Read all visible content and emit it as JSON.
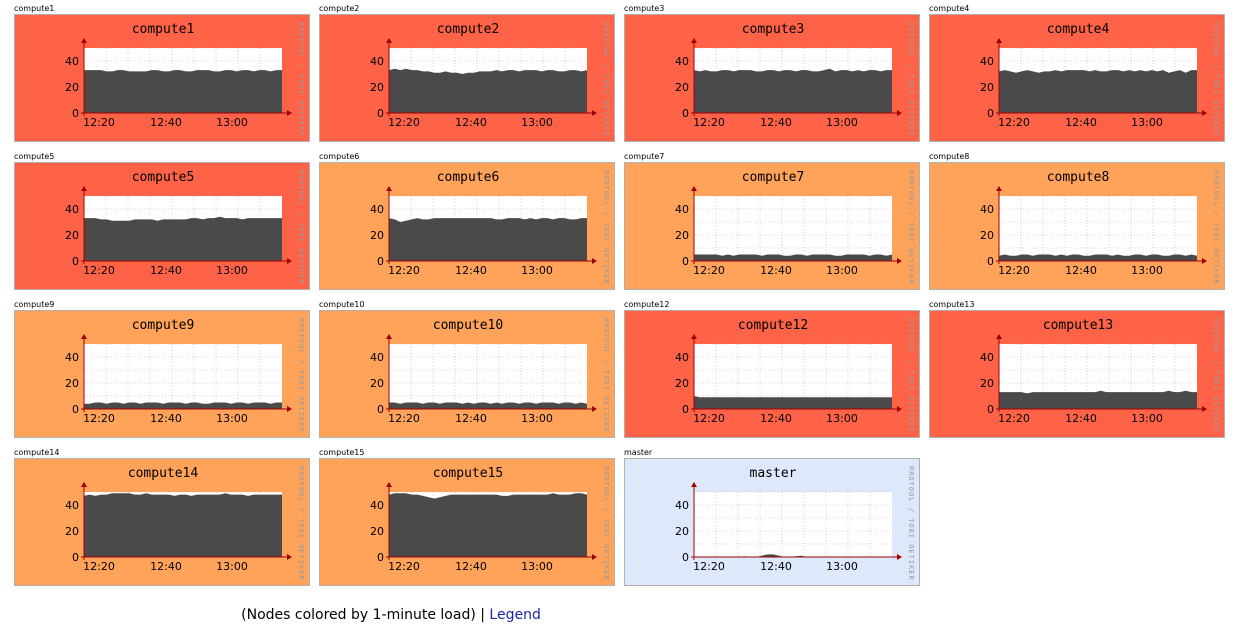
{
  "colors": {
    "high": "#ff6347",
    "medium": "#ffa35a",
    "idle": "#dde8fb",
    "area": "#4a4a4a",
    "axis": "#a00000",
    "grid": "#e8a0a0"
  },
  "watermark": "RRDTOOL / TOBI OETIKER",
  "footer": {
    "text": "(Nodes colored by 1-minute load) |",
    "link": "Legend"
  },
  "chart_data": [
    {
      "type": "area",
      "node": "compute1",
      "title": "compute1",
      "load": "high",
      "xticks": [
        "12:20",
        "12:40",
        "13:00"
      ],
      "yticks": [
        0,
        20,
        40
      ],
      "ylim": [
        0,
        50
      ],
      "values": [
        33,
        33,
        33,
        33,
        32,
        32,
        33,
        33,
        32,
        32,
        32,
        32,
        33,
        33,
        32,
        32,
        33,
        33,
        32,
        32,
        33,
        33,
        33,
        32,
        32,
        33,
        33,
        32,
        33,
        33,
        32,
        33,
        33,
        32,
        33,
        33
      ]
    },
    {
      "type": "area",
      "node": "compute2",
      "title": "compute2",
      "load": "high",
      "xticks": [
        "12:20",
        "12:40",
        "13:00"
      ],
      "yticks": [
        0,
        20,
        40
      ],
      "ylim": [
        0,
        50
      ],
      "values": [
        33,
        34,
        33,
        34,
        33,
        33,
        32,
        32,
        31,
        31,
        32,
        31,
        31,
        30,
        31,
        31,
        32,
        32,
        32,
        33,
        32,
        33,
        33,
        32,
        33,
        33,
        33,
        32,
        33,
        33,
        32,
        32,
        33,
        33,
        32,
        33
      ]
    },
    {
      "type": "area",
      "node": "compute3",
      "title": "compute3",
      "load": "high",
      "xticks": [
        "12:20",
        "12:40",
        "13:00"
      ],
      "yticks": [
        0,
        20,
        40
      ],
      "ylim": [
        0,
        50
      ],
      "values": [
        33,
        32,
        33,
        32,
        32,
        33,
        33,
        32,
        33,
        33,
        33,
        32,
        32,
        33,
        33,
        32,
        33,
        33,
        32,
        33,
        33,
        32,
        32,
        33,
        34,
        32,
        33,
        33,
        32,
        33,
        32,
        33,
        33,
        32,
        33,
        33
      ]
    },
    {
      "type": "area",
      "node": "compute4",
      "title": "compute4",
      "load": "high",
      "xticks": [
        "12:20",
        "12:40",
        "13:00"
      ],
      "yticks": [
        0,
        20,
        40
      ],
      "ylim": [
        0,
        50
      ],
      "values": [
        32,
        33,
        32,
        31,
        32,
        33,
        32,
        31,
        32,
        32,
        33,
        32,
        33,
        33,
        33,
        33,
        32,
        33,
        32,
        32,
        33,
        33,
        32,
        33,
        32,
        33,
        32,
        33,
        32,
        33,
        31,
        32,
        33,
        31,
        33,
        33
      ]
    },
    {
      "type": "area",
      "node": "compute5",
      "title": "compute5",
      "load": "high",
      "xticks": [
        "12:20",
        "12:40",
        "13:00"
      ],
      "yticks": [
        0,
        20,
        40
      ],
      "ylim": [
        0,
        50
      ],
      "values": [
        33,
        33,
        33,
        32,
        32,
        31,
        31,
        31,
        31,
        32,
        32,
        32,
        32,
        31,
        32,
        32,
        32,
        32,
        32,
        33,
        33,
        32,
        33,
        33,
        34,
        33,
        33,
        33,
        32,
        33,
        33,
        33,
        33,
        33,
        33,
        33
      ]
    },
    {
      "type": "area",
      "node": "compute6",
      "title": "compute6",
      "load": "medium",
      "xticks": [
        "12:20",
        "12:40",
        "13:00"
      ],
      "yticks": [
        0,
        20,
        40
      ],
      "ylim": [
        0,
        50
      ],
      "values": [
        33,
        32,
        30,
        31,
        32,
        33,
        32,
        32,
        33,
        33,
        33,
        33,
        33,
        33,
        33,
        33,
        33,
        33,
        33,
        32,
        32,
        33,
        33,
        33,
        32,
        33,
        32,
        33,
        33,
        32,
        33,
        33,
        32,
        32,
        33,
        33
      ]
    },
    {
      "type": "area",
      "node": "compute7",
      "title": "compute7",
      "load": "medium",
      "xticks": [
        "12:20",
        "12:40",
        "13:00"
      ],
      "yticks": [
        0,
        20,
        40
      ],
      "ylim": [
        0,
        50
      ],
      "values": [
        5,
        5,
        5,
        5,
        5,
        4,
        5,
        4,
        5,
        5,
        5,
        5,
        4,
        5,
        5,
        5,
        4,
        4,
        5,
        5,
        4,
        5,
        5,
        5,
        5,
        4,
        4,
        5,
        5,
        5,
        5,
        4,
        5,
        5,
        4,
        5
      ]
    },
    {
      "type": "area",
      "node": "compute8",
      "title": "compute8",
      "load": "medium",
      "xticks": [
        "12:20",
        "12:40",
        "13:00"
      ],
      "yticks": [
        0,
        20,
        40
      ],
      "ylim": [
        0,
        50
      ],
      "values": [
        4,
        5,
        4,
        4,
        5,
        5,
        4,
        5,
        5,
        5,
        4,
        5,
        4,
        5,
        5,
        4,
        4,
        5,
        5,
        5,
        4,
        5,
        4,
        4,
        5,
        5,
        4,
        5,
        5,
        4,
        4,
        5,
        5,
        4,
        5,
        4
      ]
    },
    {
      "type": "area",
      "node": "compute9",
      "title": "compute9",
      "load": "medium",
      "xticks": [
        "12:20",
        "12:40",
        "13:00"
      ],
      "yticks": [
        0,
        20,
        40
      ],
      "ylim": [
        0,
        50
      ],
      "values": [
        4,
        4,
        5,
        5,
        4,
        5,
        5,
        4,
        5,
        5,
        4,
        5,
        5,
        5,
        4,
        5,
        5,
        5,
        4,
        5,
        5,
        4,
        4,
        5,
        5,
        5,
        4,
        5,
        5,
        4,
        5,
        5,
        5,
        4,
        5,
        5
      ]
    },
    {
      "type": "area",
      "node": "compute10",
      "title": "compute10",
      "load": "medium",
      "xticks": [
        "12:20",
        "12:40",
        "13:00"
      ],
      "yticks": [
        0,
        20,
        40
      ],
      "ylim": [
        0,
        50
      ],
      "values": [
        5,
        5,
        4,
        5,
        5,
        5,
        4,
        5,
        5,
        4,
        5,
        5,
        5,
        4,
        5,
        4,
        5,
        5,
        4,
        5,
        4,
        5,
        5,
        4,
        5,
        5,
        4,
        5,
        5,
        5,
        4,
        5,
        5,
        4,
        5,
        4
      ]
    },
    {
      "type": "area",
      "node": "compute12",
      "title": "compute12",
      "load": "high",
      "xticks": [
        "12:20",
        "12:40",
        "13:00"
      ],
      "yticks": [
        0,
        20,
        40
      ],
      "ylim": [
        0,
        50
      ],
      "values": [
        10,
        9,
        9,
        9,
        9,
        9,
        9,
        9,
        9,
        9,
        9,
        9,
        9,
        9,
        9,
        9,
        9,
        9,
        9,
        9,
        9,
        9,
        9,
        9,
        9,
        9,
        9,
        9,
        9,
        9,
        9,
        9,
        9,
        9,
        9,
        9
      ]
    },
    {
      "type": "area",
      "node": "compute13",
      "title": "compute13",
      "load": "high",
      "xticks": [
        "12:20",
        "12:40",
        "13:00"
      ],
      "yticks": [
        0,
        20,
        40
      ],
      "ylim": [
        0,
        50
      ],
      "values": [
        13,
        13,
        13,
        13,
        13,
        12,
        13,
        13,
        13,
        13,
        13,
        13,
        13,
        13,
        13,
        13,
        13,
        13,
        14,
        13,
        13,
        13,
        13,
        13,
        13,
        13,
        13,
        13,
        13,
        13,
        14,
        13,
        13,
        14,
        13,
        13
      ]
    },
    {
      "type": "area",
      "node": "compute14",
      "title": "compute14",
      "load": "medium",
      "xticks": [
        "12:20",
        "12:40",
        "13:00"
      ],
      "yticks": [
        0,
        20,
        40
      ],
      "ylim": [
        0,
        50
      ],
      "values": [
        47,
        48,
        47,
        48,
        48,
        49,
        49,
        49,
        49,
        48,
        48,
        49,
        48,
        48,
        48,
        48,
        47,
        48,
        48,
        47,
        48,
        48,
        48,
        48,
        48,
        49,
        48,
        48,
        48,
        47,
        48,
        48,
        48,
        48,
        48,
        48
      ]
    },
    {
      "type": "area",
      "node": "compute15",
      "title": "compute15",
      "load": "medium",
      "xticks": [
        "12:20",
        "12:40",
        "13:00"
      ],
      "yticks": [
        0,
        20,
        40
      ],
      "ylim": [
        0,
        50
      ],
      "values": [
        48,
        49,
        49,
        49,
        48,
        48,
        47,
        46,
        45,
        46,
        47,
        48,
        48,
        48,
        48,
        48,
        48,
        48,
        48,
        48,
        47,
        47,
        48,
        48,
        48,
        48,
        48,
        48,
        48,
        49,
        48,
        48,
        48,
        49,
        49,
        48
      ]
    },
    {
      "type": "area",
      "node": "master",
      "title": "master",
      "load": "idle",
      "xticks": [
        "12:20",
        "12:40",
        "13:00"
      ],
      "yticks": [
        0,
        20,
        40
      ],
      "ylim": [
        0,
        50
      ],
      "values": [
        0,
        0,
        0,
        0,
        0,
        0,
        0,
        0,
        0,
        0.5,
        0,
        0,
        1,
        2,
        2,
        1,
        0,
        0,
        0.5,
        1,
        0,
        0,
        0,
        0,
        0,
        0,
        0,
        0,
        0,
        0,
        0,
        0,
        0,
        0,
        0,
        0
      ]
    }
  ]
}
